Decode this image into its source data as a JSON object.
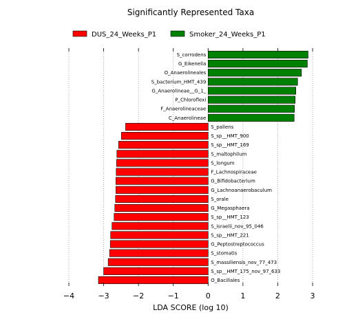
{
  "chart_data": {
    "type": "bar",
    "orientation": "horizontal",
    "title": "Significantly Represented Taxa",
    "xlabel": "LDA SCORE (log 10)",
    "ylabel": "",
    "xlim": [
      -4,
      3
    ],
    "xticks": [
      -4,
      -3,
      -2,
      -1,
      0,
      1,
      2,
      3
    ],
    "xtick_labels": [
      "−4",
      "−3",
      "−2",
      "−1",
      "0",
      "1",
      "2",
      "3"
    ],
    "grid": "vertical-dotted",
    "legend_position": "top",
    "series": [
      {
        "name": "DUS_24_Weeks_P1",
        "color": "#ff0000"
      },
      {
        "name": "Smoker_24_Weeks_P1",
        "color": "#008000"
      }
    ],
    "categories": [
      "S_corrodens",
      "G_Eikenella",
      "O_Anaerolineales",
      "S_bacterium_HMT_439",
      "G_Anaerolineae__G_1_",
      "P_Chloroflexi",
      "F_Anaerolineaceae",
      "C_Anaerolineae",
      "S_pallens",
      "S_sp__HMT_900",
      "S_sp__HMT_169",
      "S_maltophilum",
      "S_longum",
      "F_Lachnospiraceae",
      "G_Bifidobacterium",
      "G_Lachnoanaerobaculum",
      "S_orale",
      "G_Megasphaera",
      "S_sp__HMT_123",
      "S_israelii_nov_95_046",
      "S_sp__HMT_221",
      "G_Peptostreptococcus",
      "S_stomatis",
      "S_massiliensis_nov_77_473",
      "S_sp__HMT_175_nov_97_633",
      "O_Bacillales"
    ],
    "values": [
      2.87,
      2.85,
      2.68,
      2.57,
      2.52,
      2.5,
      2.48,
      2.47,
      -2.37,
      -2.49,
      -2.57,
      -2.62,
      -2.63,
      -2.64,
      -2.65,
      -2.65,
      -2.66,
      -2.68,
      -2.7,
      -2.76,
      -2.8,
      -2.81,
      -2.83,
      -2.87,
      -3.0,
      -3.15
    ],
    "groups": [
      "Smoker_24_Weeks_P1",
      "Smoker_24_Weeks_P1",
      "Smoker_24_Weeks_P1",
      "Smoker_24_Weeks_P1",
      "Smoker_24_Weeks_P1",
      "Smoker_24_Weeks_P1",
      "Smoker_24_Weeks_P1",
      "Smoker_24_Weeks_P1",
      "DUS_24_Weeks_P1",
      "DUS_24_Weeks_P1",
      "DUS_24_Weeks_P1",
      "DUS_24_Weeks_P1",
      "DUS_24_Weeks_P1",
      "DUS_24_Weeks_P1",
      "DUS_24_Weeks_P1",
      "DUS_24_Weeks_P1",
      "DUS_24_Weeks_P1",
      "DUS_24_Weeks_P1",
      "DUS_24_Weeks_P1",
      "DUS_24_Weeks_P1",
      "DUS_24_Weeks_P1",
      "DUS_24_Weeks_P1",
      "DUS_24_Weeks_P1",
      "DUS_24_Weeks_P1",
      "DUS_24_Weeks_P1",
      "DUS_24_Weeks_P1"
    ]
  }
}
